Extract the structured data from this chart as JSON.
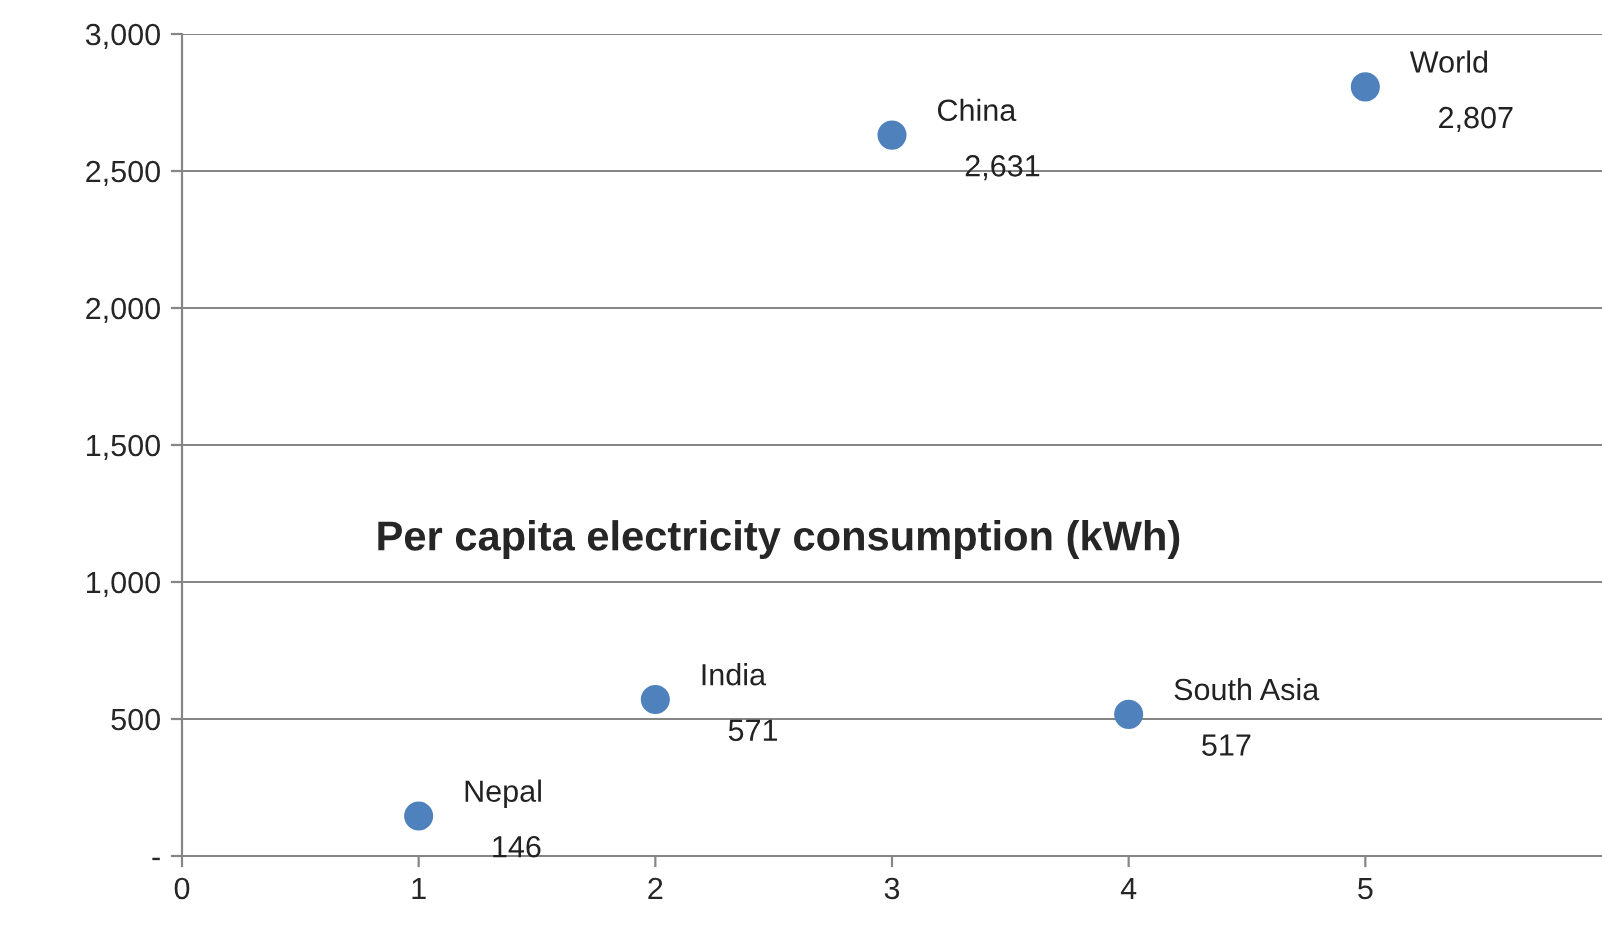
{
  "chart_data": {
    "type": "scatter",
    "title": "Per capita electricity consumption (kWh)",
    "x": [
      1,
      2,
      3,
      4,
      5
    ],
    "series": [
      {
        "color": "#4f81bd",
        "values": [
          146,
          571,
          2631,
          517,
          2807
        ]
      }
    ],
    "value_labels": [
      "146",
      "571",
      "2,631",
      "517",
      "2,807"
    ],
    "annotations": [
      {
        "text": "Nepal",
        "x": 1,
        "y": 146
      },
      {
        "text": "India",
        "x": 2,
        "y": 571
      },
      {
        "text": "China",
        "x": 3,
        "y": 2631
      },
      {
        "text": "South Asia",
        "x": 4,
        "y": 517
      },
      {
        "text": "World",
        "x": 5,
        "y": 2807
      }
    ],
    "xlim": [
      0,
      6
    ],
    "xticks": [
      0,
      1,
      2,
      3,
      4,
      5
    ],
    "ylim": [
      0,
      3000
    ],
    "yticks": [
      {
        "value": 0,
        "label": "-"
      },
      {
        "value": 500,
        "label": "500"
      },
      {
        "value": 1000,
        "label": "1,000"
      },
      {
        "value": 1500,
        "label": "1,500"
      },
      {
        "value": 2000,
        "label": "2,000"
      },
      {
        "value": 2500,
        "label": "2,500"
      },
      {
        "value": 3000,
        "label": "3,000"
      }
    ],
    "grid": "y",
    "marker": "circle"
  }
}
